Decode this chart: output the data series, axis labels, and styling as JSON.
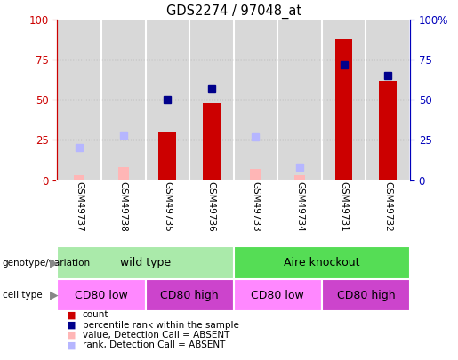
{
  "title": "GDS2274 / 97048_at",
  "samples": [
    "GSM49737",
    "GSM49738",
    "GSM49735",
    "GSM49736",
    "GSM49733",
    "GSM49734",
    "GSM49731",
    "GSM49732"
  ],
  "count": [
    null,
    null,
    30,
    48,
    null,
    null,
    88,
    62
  ],
  "rank": [
    null,
    null,
    50,
    57,
    null,
    null,
    72,
    65
  ],
  "value_absent": [
    3,
    8,
    null,
    null,
    7,
    3,
    null,
    null
  ],
  "rank_absent": [
    20,
    28,
    null,
    null,
    27,
    8,
    null,
    null
  ],
  "ylim": [
    0,
    100
  ],
  "yticks": [
    0,
    25,
    50,
    75,
    100
  ],
  "count_color": "#cc0000",
  "rank_color": "#00008b",
  "value_absent_color": "#ffb6b6",
  "rank_absent_color": "#b6b6ff",
  "background_color": "#ffffff",
  "plot_bg_color": "#d8d8d8",
  "sample_bg_color": "#c8c8c8",
  "genotype_groups": [
    {
      "label": "wild type",
      "start": 0,
      "end": 4,
      "color": "#aaeaaa"
    },
    {
      "label": "Aire knockout",
      "start": 4,
      "end": 8,
      "color": "#55dd55"
    }
  ],
  "cell_type_groups": [
    {
      "label": "CD80 low",
      "start": 0,
      "end": 2,
      "color": "#ff88ff"
    },
    {
      "label": "CD80 high",
      "start": 2,
      "end": 4,
      "color": "#cc44cc"
    },
    {
      "label": "CD80 low",
      "start": 4,
      "end": 6,
      "color": "#ff88ff"
    },
    {
      "label": "CD80 high",
      "start": 6,
      "end": 8,
      "color": "#cc44cc"
    }
  ],
  "legend_items": [
    {
      "label": "count",
      "color": "#cc0000"
    },
    {
      "label": "percentile rank within the sample",
      "color": "#00008b"
    },
    {
      "label": "value, Detection Call = ABSENT",
      "color": "#ffb6b6"
    },
    {
      "label": "rank, Detection Call = ABSENT",
      "color": "#b6b6ff"
    }
  ],
  "bar_width": 0.4,
  "absent_bar_width": 0.25,
  "marker_size": 6
}
